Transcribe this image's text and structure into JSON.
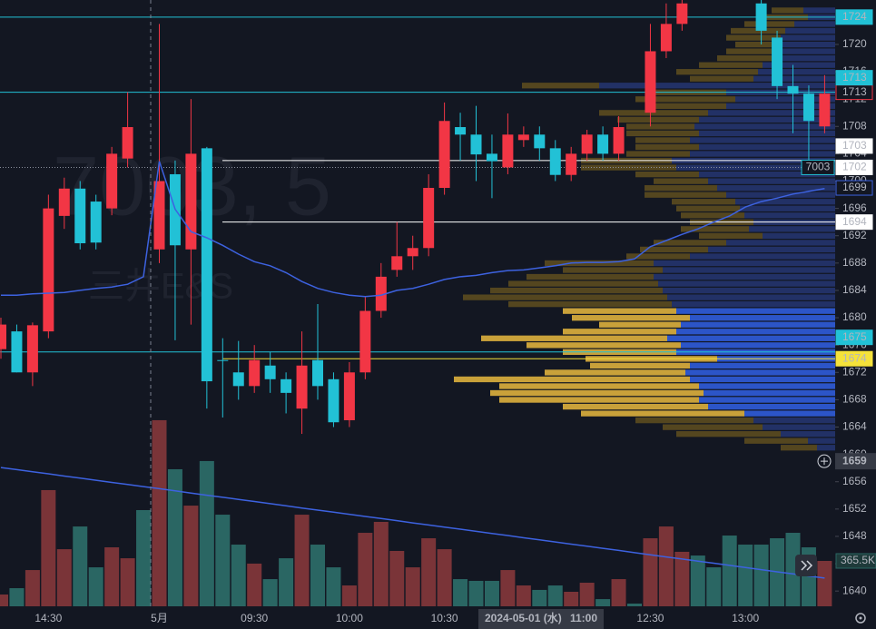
{
  "chart_data": {
    "type": "candlestick",
    "watermark": [
      "7003, 5",
      "三井E&S"
    ],
    "categories": [
      null,
      null,
      null,
      "14:30",
      null,
      null,
      null,
      null,
      null,
      null,
      "5月",
      null,
      null,
      null,
      null,
      null,
      "09:30",
      null,
      null,
      null,
      null,
      null,
      "10:00",
      null,
      null,
      null,
      null,
      null,
      "10:30",
      null,
      null,
      null,
      null,
      null,
      "11:00",
      null,
      null,
      null,
      null,
      null,
      null,
      "12:30",
      null,
      null,
      null,
      null,
      null,
      "13:00",
      null,
      null,
      null,
      null,
      null
    ],
    "open": [
      1675.4,
      1678,
      1672,
      1678,
      1694.9,
      1698.9,
      1697,
      1696,
      1703.3,
      null,
      1690,
      1701,
      1690,
      1704.8,
      1673.8,
      1672,
      1670,
      1673,
      1671,
      1666.7,
      1673.8,
      1671,
      1665,
      1672,
      1681,
      1687,
      1689,
      1690.2,
      1699,
      1707.9,
      1706.8,
      1704,
      1702,
      1706,
      1706.8,
      1704.8,
      1700.9,
      1704,
      1706.8,
      1704,
      null,
      1710,
      1719,
      1723,
      null,
      null,
      null,
      null,
      1726,
      1721,
      1713.9,
      1712.8,
      1708
    ],
    "high": [
      1680,
      1679,
      1679.3,
      1698,
      1700.5,
      1700,
      1698,
      1705,
      1713,
      null,
      1723,
      1703,
      1712,
      1705,
      1677,
      1676.6,
      1676,
      1675,
      1672,
      1678,
      1682,
      1672,
      1673.5,
      1683,
      1688,
      1694,
      1692,
      1701,
      1711.5,
      1710,
      1711,
      1706.8,
      1709.9,
      1708,
      1708,
      1706,
      1705,
      1707.5,
      1708,
      1709.5,
      null,
      1723,
      1726,
      1726.5,
      null,
      null,
      null,
      null,
      1726.5,
      1722,
      1717,
      1714,
      1715.5
    ],
    "low": [
      1674,
      1672,
      1670,
      1677,
      1693,
      1690,
      1690,
      1695,
      1702,
      null,
      1688,
      1676.7,
      1679,
      1666.7,
      1665.4,
      1668,
      1669,
      1669,
      1666,
      1663,
      1668,
      1664,
      1664,
      1671,
      1680,
      1686,
      1687,
      1689,
      1698,
      1703,
      1700,
      1697.5,
      1701,
      1705,
      1703,
      1700,
      1700,
      1703,
      1703,
      1703,
      null,
      1708,
      1718,
      1722,
      null,
      null,
      null,
      null,
      1720,
      1712,
      1707,
      1702,
      1707
    ],
    "close": [
      1679,
      1672,
      1678.9,
      1696,
      1698.9,
      1690.9,
      1691,
      1704,
      1707.9,
      null,
      1700,
      1690.6,
      1704,
      1670.7,
      1673.8,
      1670,
      1673.8,
      1671,
      1669,
      1673,
      1670,
      1664.7,
      1672,
      1681,
      1686,
      1689,
      1690.2,
      1699,
      1708.8,
      1706.8,
      1703.9,
      1702.9,
      1706.8,
      1706.8,
      1704.8,
      1700.9,
      1704,
      1706.8,
      1704,
      1707.9,
      null,
      1719,
      1723,
      1726,
      null,
      null,
      null,
      null,
      1722,
      1713.9,
      1712.8,
      1708.8,
      1712.8
    ],
    "up_color": "#f23645",
    "down_color": "#22c1d6",
    "vwap": {
      "color": "#3d62e0",
      "values": [
        1683.3,
        1683.3,
        1683.5,
        1683.6,
        1683.7,
        1684.0,
        1684.3,
        1684.5,
        1684.9,
        1686.0,
        1702.9,
        1695.9,
        1692.6,
        1691.7,
        1690.6,
        1689.3,
        1688.2,
        1687.6,
        1686.6,
        1685.3,
        1684.3,
        1683.7,
        1683.3,
        1683.1,
        1683.3,
        1684.0,
        1684.3,
        1684.9,
        1685.6,
        1686.0,
        1686.2,
        1686.6,
        1686.9,
        1687.0,
        1687.3,
        1687.6,
        1688.0,
        1688.1,
        1688.1,
        1688.2,
        1688.6,
        1690.4,
        1691.3,
        1692.2,
        1693.0,
        1694.0,
        1694.9,
        1696.2,
        1697.0,
        1697.5,
        1698.1,
        1698.5,
        1698.9
      ]
    },
    "volume": {
      "lim": [
        0,
        4883000
      ],
      "up_color": "#7a3438",
      "down_color": "#2a6663",
      "values": [
        95000,
        146000,
        292000,
        936000,
        460000,
        643000,
        314000,
        475000,
        387000,
        775000,
        1499000,
        1104000,
        811000,
        1170000,
        738000,
        497000,
        344000,
        219000,
        387000,
        738000,
        497000,
        314000,
        168000,
        592000,
        680000,
        446000,
        314000,
        548000,
        460000,
        219000,
        205000,
        205000,
        292000,
        168000,
        132000,
        168000,
        117000,
        190000,
        58000,
        219000,
        22000,
        548000,
        643000,
        439000,
        409000,
        314000,
        570000,
        497000,
        497000,
        548000,
        592000,
        475000,
        365500
      ],
      "ma_color": "#3d62e0",
      "ma": [
        1118000,
        1101000,
        1084000,
        1067000,
        1049000,
        1032000,
        1015000,
        998000,
        981000,
        964000,
        947000,
        930000,
        912000,
        895000,
        878000,
        861000,
        844000,
        827000,
        810000,
        792000,
        775000,
        758000,
        741000,
        724000,
        707000,
        690000,
        672000,
        655000,
        638000,
        621000,
        604000,
        587000,
        570000,
        552000,
        535000,
        518000,
        501000,
        484000,
        467000,
        450000,
        432000,
        415000,
        398000,
        381000,
        364000,
        347000,
        330000,
        312000,
        295000,
        278000,
        261000,
        244000,
        227000
      ]
    },
    "profile": {
      "prices": [
        1725,
        1724,
        1723,
        1722,
        1721,
        1720,
        1719,
        1718,
        1717,
        1716,
        1715,
        1714,
        1713,
        1712,
        1711,
        1710,
        1709,
        1708,
        1707,
        1706,
        1705,
        1704,
        1703,
        1702,
        1701,
        1700,
        1699,
        1698,
        1697,
        1696,
        1695,
        1694,
        1693,
        1692,
        1691,
        1690,
        1689,
        1688,
        1687,
        1686,
        1685,
        1684,
        1683,
        1682,
        1681,
        1680,
        1679,
        1678,
        1677,
        1676,
        1675,
        1674,
        1673,
        1672,
        1671,
        1670,
        1669,
        1668,
        1667,
        1666,
        1665,
        1664,
        1663,
        1662,
        1661
      ],
      "up": [
        35,
        30,
        45,
        55,
        60,
        60,
        65,
        70,
        80,
        85,
        90,
        260,
        120,
        110,
        120,
        140,
        150,
        155,
        150,
        160,
        150,
        160,
        180,
        175,
        150,
        140,
        130,
        120,
        110,
        105,
        100,
        90,
        95,
        80,
        120,
        140,
        160,
        200,
        190,
        200,
        195,
        190,
        185,
        180,
        175,
        160,
        170,
        175,
        185,
        170,
        175,
        130,
        160,
        165,
        160,
        150,
        145,
        150,
        140,
        100,
        90,
        80,
        60,
        30,
        20
      ],
      "down": [
        35,
        50,
        55,
        60,
        60,
        50,
        55,
        60,
        70,
        90,
        70,
        85,
        80,
        110,
        80,
        120,
        90,
        75,
        80,
        60,
        70,
        70,
        100,
        105,
        70,
        60,
        80,
        90,
        70,
        70,
        70,
        70,
        75,
        70,
        80,
        75,
        70,
        120,
        110,
        140,
        165,
        190,
        225,
        180,
        125,
        130,
        90,
        125,
        205,
        170,
        125,
        145,
        110,
        155,
        260,
        220,
        235,
        220,
        160,
        180,
        130,
        110,
        115,
        70,
        40
      ],
      "value_area": [
        1666,
        1681
      ],
      "up_color": "#2c55c8",
      "down_color": "#c9a13a",
      "up_dim_color": "#223166",
      "down_dim_color": "#54461f"
    },
    "ylim": [
      1637.5,
      1726.5
    ],
    "yticks": [
      1720,
      1716,
      1712,
      1708,
      1704,
      1700,
      1696,
      1692,
      1688,
      1684,
      1680,
      1676,
      1672,
      1668,
      1664,
      1660,
      1656,
      1652,
      1648,
      1644,
      1640
    ],
    "badges": [
      {
        "value": 1724,
        "fill": "#22c1d6",
        "text_color": "#131722",
        "border": "#22c1d6",
        "line": "full"
      },
      {
        "value": 1713,
        "fill": "#131722",
        "text_color": "#f23645",
        "border": "#f23645"
      },
      {
        "value": 1713,
        "fill": "#22c1d6",
        "text_color": "#131722",
        "border": "#22c1d6",
        "line": "full"
      },
      {
        "value": 1702,
        "fill": "#ffffff",
        "text_color": "#131722",
        "border": "#ffffff",
        "line": "dotted"
      },
      {
        "value": 1703,
        "fill": "#ffffff",
        "text_color": "#131722",
        "border": "#ffffff",
        "line": "partial"
      },
      {
        "value": 1699,
        "fill": "#131722",
        "text_color": "#3d62e0",
        "border": "#3d62e0"
      },
      {
        "value": 1694,
        "fill": "#ffffff",
        "text_color": "#131722",
        "border": "#ffffff",
        "line": "partial"
      },
      {
        "value": 1674,
        "fill": "#f5e23a",
        "text_color": "#131722",
        "border": "#f5e23a",
        "line": "partial"
      },
      {
        "value": 1675,
        "fill": "#22c1d6",
        "text_color": "#131722",
        "border": "#22c1d6",
        "line": "full"
      }
    ],
    "symbol_badge": "7003",
    "crosshair_price": 1659,
    "volume_badge": {
      "value": 365500,
      "label": "365.5K"
    },
    "time_label": "2024-05-01 (水)"
  }
}
